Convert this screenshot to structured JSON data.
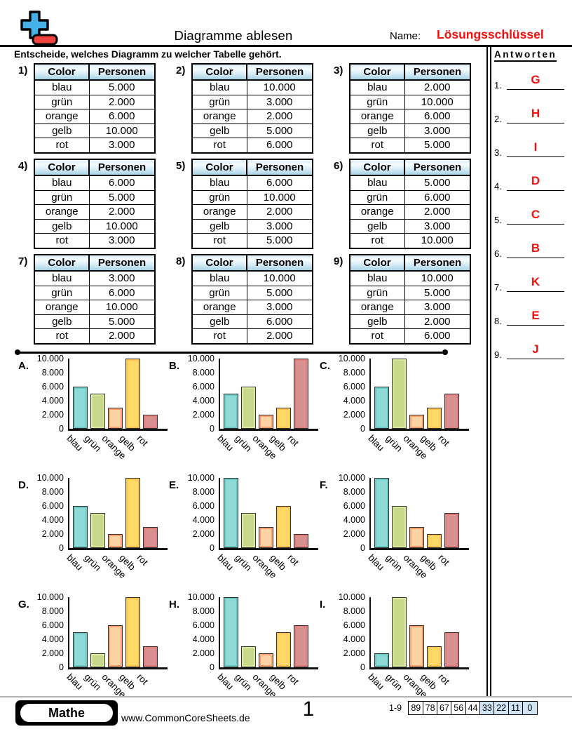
{
  "header": {
    "title": "Diagramme ablesen",
    "name_label": "Name:",
    "answer_key_label": "Lösungsschlüssel",
    "instruction": "Entscheide, welches Diagramm zu welcher Tabelle gehört."
  },
  "answers": {
    "heading": "Antworten",
    "items": [
      {
        "num": "1.",
        "letter": "G"
      },
      {
        "num": "2.",
        "letter": "H"
      },
      {
        "num": "3.",
        "letter": "I"
      },
      {
        "num": "4.",
        "letter": "D"
      },
      {
        "num": "5.",
        "letter": "C"
      },
      {
        "num": "6.",
        "letter": "B"
      },
      {
        "num": "7.",
        "letter": "K"
      },
      {
        "num": "8.",
        "letter": "E"
      },
      {
        "num": "9.",
        "letter": "J"
      }
    ]
  },
  "tables": {
    "col_headers": [
      "Color",
      "Personen"
    ],
    "items": [
      {
        "num": "1)",
        "rows": [
          [
            "blau",
            "5.000"
          ],
          [
            "grün",
            "2.000"
          ],
          [
            "orange",
            "6.000"
          ],
          [
            "gelb",
            "10.000"
          ],
          [
            "rot",
            "3.000"
          ]
        ]
      },
      {
        "num": "2)",
        "rows": [
          [
            "blau",
            "10.000"
          ],
          [
            "grün",
            "3.000"
          ],
          [
            "orange",
            "2.000"
          ],
          [
            "gelb",
            "5.000"
          ],
          [
            "rot",
            "6.000"
          ]
        ]
      },
      {
        "num": "3)",
        "rows": [
          [
            "blau",
            "2.000"
          ],
          [
            "grün",
            "10.000"
          ],
          [
            "orange",
            "6.000"
          ],
          [
            "gelb",
            "3.000"
          ],
          [
            "rot",
            "5.000"
          ]
        ]
      },
      {
        "num": "4)",
        "rows": [
          [
            "blau",
            "6.000"
          ],
          [
            "grün",
            "5.000"
          ],
          [
            "orange",
            "2.000"
          ],
          [
            "gelb",
            "10.000"
          ],
          [
            "rot",
            "3.000"
          ]
        ]
      },
      {
        "num": "5)",
        "rows": [
          [
            "blau",
            "6.000"
          ],
          [
            "grün",
            "10.000"
          ],
          [
            "orange",
            "2.000"
          ],
          [
            "gelb",
            "3.000"
          ],
          [
            "rot",
            "5.000"
          ]
        ]
      },
      {
        "num": "6)",
        "rows": [
          [
            "blau",
            "5.000"
          ],
          [
            "grün",
            "6.000"
          ],
          [
            "orange",
            "2.000"
          ],
          [
            "gelb",
            "3.000"
          ],
          [
            "rot",
            "10.000"
          ]
        ]
      },
      {
        "num": "7)",
        "rows": [
          [
            "blau",
            "3.000"
          ],
          [
            "grün",
            "6.000"
          ],
          [
            "orange",
            "10.000"
          ],
          [
            "gelb",
            "5.000"
          ],
          [
            "rot",
            "2.000"
          ]
        ]
      },
      {
        "num": "8)",
        "rows": [
          [
            "blau",
            "10.000"
          ],
          [
            "grün",
            "5.000"
          ],
          [
            "orange",
            "3.000"
          ],
          [
            "gelb",
            "6.000"
          ],
          [
            "rot",
            "2.000"
          ]
        ]
      },
      {
        "num": "9)",
        "rows": [
          [
            "blau",
            "10.000"
          ],
          [
            "grün",
            "5.000"
          ],
          [
            "orange",
            "3.000"
          ],
          [
            "gelb",
            "2.000"
          ],
          [
            "rot",
            "6.000"
          ]
        ]
      }
    ]
  },
  "chart_data": [
    {
      "type": "bar",
      "label": "A.",
      "categories": [
        "blau",
        "grün",
        "orange",
        "gelb",
        "rot"
      ],
      "values": [
        6000,
        5000,
        3000,
        10000,
        2000
      ],
      "yticks": [
        "10.000",
        "8.000",
        "6.000",
        "4.000",
        "2.000",
        "0"
      ],
      "ylim": [
        0,
        10000
      ],
      "grid": false
    },
    {
      "type": "bar",
      "label": "B.",
      "categories": [
        "blau",
        "grün",
        "orange",
        "gelb",
        "rot"
      ],
      "values": [
        5000,
        6000,
        2000,
        3000,
        10000
      ],
      "yticks": [
        "10.000",
        "8.000",
        "6.000",
        "4.000",
        "2.000",
        "0"
      ],
      "ylim": [
        0,
        10000
      ],
      "grid": false
    },
    {
      "type": "bar",
      "label": "C.",
      "categories": [
        "blau",
        "grün",
        "orange",
        "gelb",
        "rot"
      ],
      "values": [
        6000,
        10000,
        2000,
        3000,
        5000
      ],
      "yticks": [
        "10.000",
        "8.000",
        "6.000",
        "4.000",
        "2.000",
        "0"
      ],
      "ylim": [
        0,
        10000
      ],
      "grid": false
    },
    {
      "type": "bar",
      "label": "D.",
      "categories": [
        "blau",
        "grün",
        "orange",
        "gelb",
        "rot"
      ],
      "values": [
        6000,
        5000,
        2000,
        10000,
        3000
      ],
      "yticks": [
        "10.000",
        "8.000",
        "6.000",
        "4.000",
        "2.000",
        "0"
      ],
      "ylim": [
        0,
        10000
      ],
      "grid": false
    },
    {
      "type": "bar",
      "label": "E.",
      "categories": [
        "blau",
        "grün",
        "orange",
        "gelb",
        "rot"
      ],
      "values": [
        10000,
        5000,
        3000,
        6000,
        2000
      ],
      "yticks": [
        "10.000",
        "8.000",
        "6.000",
        "4.000",
        "2.000",
        "0"
      ],
      "ylim": [
        0,
        10000
      ],
      "grid": false
    },
    {
      "type": "bar",
      "label": "F.",
      "categories": [
        "blau",
        "grün",
        "orange",
        "gelb",
        "rot"
      ],
      "values": [
        10000,
        6000,
        3000,
        2000,
        5000
      ],
      "yticks": [
        "10.000",
        "8.000",
        "6.000",
        "4.000",
        "2.000",
        "0"
      ],
      "ylim": [
        0,
        10000
      ],
      "grid": false
    },
    {
      "type": "bar",
      "label": "G.",
      "categories": [
        "blau",
        "grün",
        "orange",
        "gelb",
        "rot"
      ],
      "values": [
        5000,
        2000,
        6000,
        10000,
        3000
      ],
      "yticks": [
        "10.000",
        "8.000",
        "6.000",
        "4.000",
        "2.000",
        "0"
      ],
      "ylim": [
        0,
        10000
      ],
      "grid": false
    },
    {
      "type": "bar",
      "label": "H.",
      "categories": [
        "blau",
        "grün",
        "orange",
        "gelb",
        "rot"
      ],
      "values": [
        10000,
        3000,
        2000,
        5000,
        6000
      ],
      "yticks": [
        "10.000",
        "8.000",
        "6.000",
        "4.000",
        "2.000",
        "0"
      ],
      "ylim": [
        0,
        10000
      ],
      "grid": false
    },
    {
      "type": "bar",
      "label": "I.",
      "categories": [
        "blau",
        "grün",
        "orange",
        "gelb",
        "rot"
      ],
      "values": [
        2000,
        10000,
        6000,
        3000,
        5000
      ],
      "yticks": [
        "10.000",
        "8.000",
        "6.000",
        "4.000",
        "2.000",
        "0"
      ],
      "ylim": [
        0,
        10000
      ],
      "grid": false
    }
  ],
  "colors": {
    "accent_red": "#f01010",
    "logo_blue": "#45b1e6",
    "logo_red": "#f0423c",
    "table_header_top": "#d9eef8",
    "table_header_bottom": "#a6d2e6",
    "score_highlight": "#cfe4f5",
    "bars": {
      "blau": {
        "fill": "#8edad6",
        "edge": "#6cc8c3"
      },
      "grün": {
        "fill": "#c9d98c",
        "edge": "#dcea9f"
      },
      "orange": {
        "fill": "#fdd3a3",
        "edge": "#f9a06c"
      },
      "gelb": {
        "fill": "#ffd966",
        "edge": "#fdc54f"
      },
      "rot": {
        "fill": "#d89090",
        "edge": "#e27d7d"
      }
    }
  },
  "footer": {
    "subject": "Mathe",
    "site": "www.CommonCoreSheets.de",
    "page_number": "1",
    "score_label": "1-9",
    "score_values": [
      "89",
      "78",
      "67",
      "56",
      "44",
      "33",
      "22",
      "11",
      "0"
    ],
    "score_highlight_from": 5
  }
}
